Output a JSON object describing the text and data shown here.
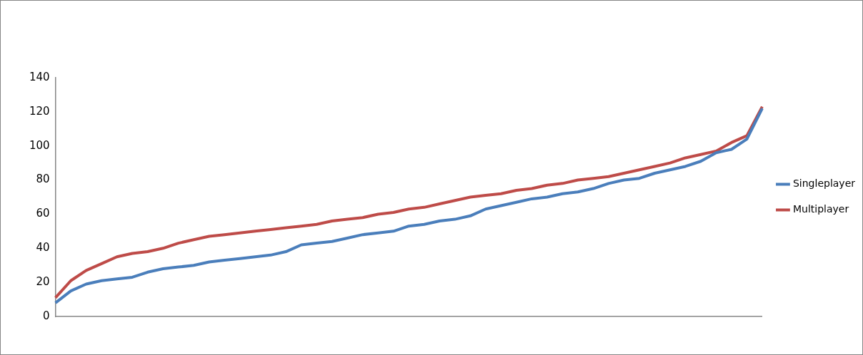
{
  "chart_data": {
    "type": "line",
    "categories": [
      null,
      null,
      null,
      null,
      null,
      null,
      null,
      null,
      null,
      null,
      null,
      null,
      null,
      null,
      null,
      null,
      null,
      null,
      null,
      null,
      null,
      null,
      null,
      null,
      null,
      null,
      null,
      null,
      null,
      null,
      null,
      null,
      null,
      null,
      null,
      null,
      null,
      null,
      null,
      null,
      null,
      null,
      null,
      null,
      null,
      null,
      null
    ],
    "series": [
      {
        "name": "Singleplayer",
        "color": "#4a7ebb",
        "values": [
          8,
          15,
          19,
          21,
          22,
          23,
          26,
          28,
          29,
          30,
          32,
          33,
          34,
          35,
          36,
          38,
          42,
          43,
          44,
          46,
          48,
          49,
          50,
          53,
          54,
          56,
          57,
          59,
          63,
          65,
          67,
          69,
          70,
          72,
          73,
          75,
          78,
          80,
          81,
          84,
          86,
          88,
          91,
          96,
          98,
          104,
          122
        ]
      },
      {
        "name": "Multiplayer",
        "color": "#be4b48",
        "values": [
          11,
          21,
          27,
          31,
          35,
          37,
          38,
          40,
          43,
          45,
          47,
          48,
          49,
          50,
          51,
          52,
          53,
          54,
          56,
          57,
          58,
          60,
          61,
          63,
          64,
          66,
          68,
          70,
          71,
          72,
          74,
          75,
          77,
          78,
          80,
          81,
          82,
          84,
          86,
          88,
          90,
          93,
          95,
          97,
          102,
          106,
          123
        ]
      }
    ],
    "ylim": [
      0,
      140
    ],
    "yticks": [
      0,
      20,
      40,
      60,
      80,
      100,
      120,
      140
    ],
    "grid": false,
    "legend": "right",
    "marker": "none",
    "line_style": "solid"
  }
}
